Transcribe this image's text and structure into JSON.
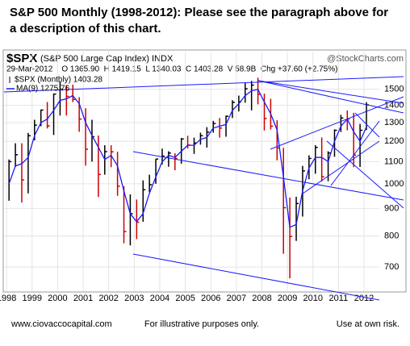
{
  "chart_data": {
    "type": "ohlc",
    "title": "S&P 500 Monthly (1998-2012):  Please see the paragraph above for a description of this chart.",
    "symbol": "$SPX",
    "symbol_desc": "(S&P 500 Large Cap Index) INDX",
    "watermark": "@StockCharts.com",
    "quote_line": "29-Mar-2012    O 1365.90  H 1419.15  L 1340.03  C 1403.28  V 58.9B  Chg +37.60 (+2.75%)",
    "x": [
      1998,
      1998.25,
      1998.5,
      1998.75,
      1999,
      1999.25,
      1999.5,
      1999.75,
      2000,
      2000.25,
      2000.5,
      2000.75,
      2001,
      2001.25,
      2001.5,
      2001.75,
      2002,
      2002.25,
      2002.5,
      2002.75,
      2003,
      2003.25,
      2003.5,
      2003.75,
      2004,
      2004.25,
      2004.5,
      2004.75,
      2005,
      2005.25,
      2005.5,
      2005.75,
      2006,
      2006.25,
      2006.5,
      2006.75,
      2007,
      2007.25,
      2007.5,
      2007.75,
      2008,
      2008.25,
      2008.5,
      2008.75,
      2009,
      2009.25,
      2009.5,
      2009.75,
      2010,
      2010.25,
      2010.5,
      2010.75,
      2011,
      2011.25,
      2011.5,
      2011.75,
      2012
    ],
    "series": [
      {
        "name": "$SPX (Monthly) 1403.28",
        "up_color": "#000000",
        "down_color": "#cc0000",
        "high": [
          1110,
          1190,
          1190,
          1244,
          1316,
          1375,
          1420,
          1473,
          1553,
          1527,
          1530,
          1450,
          1383,
          1316,
          1230,
          1180,
          1180,
          1147,
          990,
          956,
          935,
          1015,
          1040,
          1112,
          1163,
          1150,
          1140,
          1217,
          1229,
          1219,
          1245,
          1275,
          1310,
          1326,
          1340,
          1431,
          1460,
          1540,
          1555,
          1576,
          1472,
          1440,
          1313,
          1167,
          943,
          946,
          1080,
          1130,
          1180,
          1220,
          1150,
          1263,
          1344,
          1370,
          1356,
          1293,
          1419
        ],
        "low": [
          930,
          1075,
          923,
          960,
          1205,
          1280,
          1268,
          1233,
          1340,
          1340,
          1420,
          1250,
          1081,
          1100,
          945,
          1040,
          1074,
          950,
          775,
          768,
          789,
          850,
          965,
          1000,
          1087,
          1076,
          1060,
          1090,
          1163,
          1137,
          1183,
          1168,
          1245,
          1219,
          1224,
          1326,
          1364,
          1416,
          1370,
          1406,
          1257,
          1262,
          1106,
          741,
          667,
          783,
          869,
          1020,
          1044,
          1010,
          1011,
          1123,
          1249,
          1258,
          1074,
          1075,
          1259
        ],
        "close": [
          1100,
          1133,
          1017,
          1229,
          1286,
          1372,
          1282,
          1469,
          1499,
          1455,
          1436,
          1320,
          1160,
          1224,
          1041,
          1148,
          1147,
          990,
          815,
          880,
          848,
          975,
          996,
          1112,
          1126,
          1141,
          1115,
          1212,
          1181,
          1191,
          1229,
          1248,
          1295,
          1270,
          1336,
          1418,
          1421,
          1503,
          1527,
          1468,
          1323,
          1280,
          1166,
          903,
          798,
          919,
          1057,
          1115,
          1169,
          1031,
          1141,
          1258,
          1326,
          1321,
          1131,
          1258,
          1403
        ]
      },
      {
        "name": "MA(9) 1275.76",
        "color": "#1a1aff",
        "values": [
          1000,
          1080,
          1090,
          1120,
          1230,
          1300,
          1320,
          1370,
          1430,
          1440,
          1460,
          1410,
          1300,
          1230,
          1170,
          1110,
          1130,
          1080,
          970,
          880,
          850,
          880,
          960,
          1030,
          1100,
          1130,
          1120,
          1150,
          1180,
          1180,
          1210,
          1220,
          1270,
          1280,
          1290,
          1370,
          1410,
          1460,
          1490,
          1500,
          1420,
          1350,
          1260,
          1030,
          830,
          840,
          970,
          1070,
          1120,
          1120,
          1100,
          1200,
          1280,
          1320,
          1250,
          1200,
          1275.76
        ]
      }
    ],
    "xlim": [
      1997.9,
      2012.6
    ],
    "xticks": [
      1998,
      1999,
      2000,
      2001,
      2002,
      2003,
      2004,
      2005,
      2006,
      2007,
      2008,
      2009,
      2010,
      2011,
      2012
    ],
    "ylim": [
      640,
      1600
    ],
    "yticks": [
      700,
      800,
      900,
      1000,
      1100,
      1200,
      1300,
      1400,
      1500
    ],
    "log_scale": true,
    "grid": true,
    "footer": {
      "left": "www.ciovaccocapital.com",
      "center": "For illustrative purposes only.",
      "right": "Use at own risk."
    }
  }
}
